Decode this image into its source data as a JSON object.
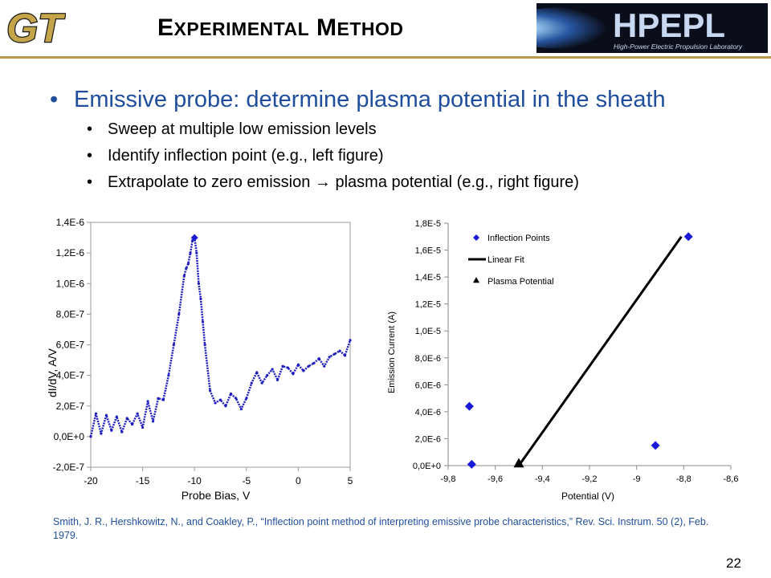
{
  "slide": {
    "title_first_cap": "E",
    "title_first_rest": "XPERIMENTAL",
    "title_second_cap": "M",
    "title_second_rest": "ETHOD",
    "logo_left_text": "GT",
    "logo_right_text": "HPEPL",
    "logo_right_subtext": "High-Power Electric Propulsion Laboratory",
    "page_number": "22",
    "colors": {
      "accent_blue": "#1f4e9c",
      "gold": "#b89a4a",
      "data_blue": "#1f1fbf",
      "marker_blue": "#1a1ad6"
    }
  },
  "bullets": {
    "main": "Emissive probe: determine plasma potential in the sheath",
    "sub": [
      "Sweep at multiple low emission levels",
      "Identify inflection point (e.g., left figure)",
      "Extrapolate to zero emission",
      "plasma potential (e.g., right figure)"
    ],
    "arrow_glyph": "→"
  },
  "reference": "Smith, J. R., Hershkowitz, N., and Coakley, P., “Inflection point method of interpreting emissive probe characteristics,” Rev. Sci. Instrum. 50 (2), Feb. 1979.",
  "chart_data": [
    {
      "type": "line",
      "xlabel": "Probe Bias, V",
      "ylabel": "dI/dV, A/V",
      "xlim": [
        -20,
        5
      ],
      "ylim": [
        -2e-07,
        1.4e-06
      ],
      "xticks": [
        -20,
        -15,
        -10,
        -5,
        0,
        5
      ],
      "xtick_labels": [
        "-20",
        "-15",
        "-10",
        "-5",
        "0",
        "5"
      ],
      "yticks": [
        -2e-07,
        0,
        2e-07,
        4e-07,
        6e-07,
        8e-07,
        1e-06,
        1.2e-06,
        1.4e-06
      ],
      "ytick_labels": [
        "-2,0E-7",
        "0,0E+0",
        "2,0E-7",
        "4,0E-7",
        "6,0E-7",
        "8,0E-7",
        "1,0E-6",
        "1,2E-6",
        "1,4E-6"
      ],
      "grid": false,
      "series": [
        {
          "x": [
            -20.0,
            -19.5,
            -19.0,
            -18.5,
            -18.0,
            -17.5,
            -17.0,
            -16.5,
            -16.0,
            -15.5,
            -15.0,
            -14.5,
            -14.0,
            -13.5,
            -13.0,
            -12.5,
            -12.0,
            -11.5,
            -11.0,
            -10.8,
            -10.6,
            -10.4,
            -10.2,
            -10.0,
            -9.8,
            -9.6,
            -9.4,
            -9.2,
            -9.0,
            -8.5,
            -8.0,
            -7.5,
            -7.0,
            -6.5,
            -6.0,
            -5.5,
            -5.0,
            -4.5,
            -4.0,
            -3.5,
            -3.0,
            -2.5,
            -2.0,
            -1.5,
            -1.0,
            -0.5,
            0.0,
            0.5,
            1.0,
            1.5,
            2.0,
            2.5,
            3.0,
            3.5,
            4.0,
            4.5,
            5.0
          ],
          "y": [
            0.0,
            1.5e-07,
            2e-08,
            1.4e-07,
            4e-08,
            1.3e-07,
            3e-08,
            1.2e-07,
            8e-08,
            1.5e-07,
            6e-08,
            2.3e-07,
            1e-07,
            2.5e-07,
            2.4e-07,
            4e-07,
            6e-07,
            8e-07,
            1.05e-06,
            1.1e-06,
            1.13e-06,
            1.2e-06,
            1.28e-06,
            1.3e-06,
            1.2e-06,
            1e-06,
            9e-07,
            7.5e-07,
            6e-07,
            3e-07,
            2.2e-07,
            2.4e-07,
            2e-07,
            2.8e-07,
            2.5e-07,
            1.8e-07,
            2.5e-07,
            3.5e-07,
            4.2e-07,
            3.5e-07,
            4e-07,
            4.4e-07,
            3.7e-07,
            4.6e-07,
            4.5e-07,
            4.1e-07,
            4.7e-07,
            4.3e-07,
            4.6e-07,
            4.8e-07,
            5.1e-07,
            4.6e-07,
            5.2e-07,
            5.4e-07,
            5.6e-07,
            5.3e-07,
            6.3e-07
          ]
        }
      ],
      "annotations": [
        {
          "marker": "diamond",
          "x": -10.0,
          "y": 1.3e-06
        }
      ]
    },
    {
      "type": "scatter",
      "xlabel": "Potential (V)",
      "ylabel": "Emission Current  (A)",
      "xlim": [
        -9.8,
        -8.6
      ],
      "ylim": [
        0,
        1.8e-05
      ],
      "xticks": [
        -9.8,
        -9.6,
        -9.4,
        -9.2,
        -9.0,
        -8.8,
        -8.6
      ],
      "xtick_labels": [
        "-9,8",
        "-9,6",
        "-9,4",
        "-9,2",
        "-9",
        "-8,8",
        "-8,6"
      ],
      "yticks": [
        0,
        2e-06,
        4e-06,
        6e-06,
        8e-06,
        1e-05,
        1.2e-05,
        1.4e-05,
        1.6e-05,
        1.8e-05
      ],
      "ytick_labels": [
        "0,0E+0",
        "2,0E-6",
        "4,0E-6",
        "6,0E-6",
        "8,0E-6",
        "1,0E-5",
        "1,2E-5",
        "1,4E-5",
        "1,6E-5",
        "1,8E-5"
      ],
      "grid": false,
      "legend_position": "top-left",
      "series": [
        {
          "name": "Inflection Points",
          "marker": "diamond",
          "x": [
            -9.71,
            -9.7,
            -8.92,
            -8.78
          ],
          "y": [
            4.4e-06,
            1e-07,
            1.5e-06,
            1.7e-05
          ]
        },
        {
          "name": "Linear Fit",
          "marker": "line",
          "x": [
            -9.5,
            -8.81
          ],
          "y": [
            0,
            1.7e-05
          ]
        },
        {
          "name": "Plasma Potential",
          "marker": "triangle",
          "x": [
            -9.5
          ],
          "y": [
            0
          ]
        }
      ]
    }
  ]
}
